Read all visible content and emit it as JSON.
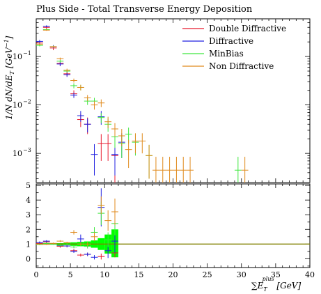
{
  "chart_data": {
    "type": "scatter",
    "title": "Plus Side - Total Transverse Energy Deposition",
    "ylabel": "1/N dN/dE_T [GeV^-1]",
    "xlabel": "ΣE_T^plus [GeV]",
    "xlim": [
      0,
      40
    ],
    "main_yscale": "log",
    "main_ylim": [
      0.00025,
      0.6
    ],
    "ratio_ylim": [
      -0.6,
      5.1
    ],
    "x_ticks": [
      0,
      5,
      10,
      15,
      20,
      25,
      30,
      35,
      40
    ],
    "y_ticks_main": [
      "10^-3",
      "10^-2",
      "10^-1"
    ],
    "y_ticks_ratio": [
      0,
      1,
      2,
      3,
      4,
      5
    ],
    "legend_position": "top-right",
    "colors": {
      "Double Diffractive": "#e8192c",
      "Diffractive": "#1f1fe0",
      "MinBias": "#3ee83e",
      "Non Diffractive": "#e08a1c",
      "band": "#00ff00",
      "unity_line": "#808000"
    },
    "series": [
      {
        "name": "Double Diffractive",
        "points": [
          {
            "x": 0.5,
            "y": 0.19,
            "ey": 0.02
          },
          {
            "x": 1.5,
            "y": 0.4,
            "ey": 0.03
          },
          {
            "x": 2.5,
            "y": 0.15,
            "ey": 0.015
          },
          {
            "x": 3.5,
            "y": 0.072,
            "ey": 0.008
          },
          {
            "x": 4.5,
            "y": 0.044,
            "ey": 0.005
          },
          {
            "x": 5.5,
            "y": 0.017,
            "ey": 0.003
          },
          {
            "x": 6.5,
            "y": 0.005,
            "ey": 0.0015
          },
          {
            "x": 7.5,
            "y": 0.004,
            "ey": 0.0015
          },
          {
            "x": 9.5,
            "y": 0.0016,
            "ey": 0.0009
          },
          {
            "x": 10.5,
            "y": 0.0016,
            "ey": 0.0009
          },
          {
            "x": 11.5,
            "y": 0.0009,
            "ey": 0.0007
          }
        ]
      },
      {
        "name": "Diffractive",
        "points": [
          {
            "x": 0.5,
            "y": 0.205,
            "ey": 0.015
          },
          {
            "x": 1.5,
            "y": 0.42,
            "ey": 0.02
          },
          {
            "x": 2.5,
            "y": 0.16,
            "ey": 0.012
          },
          {
            "x": 3.5,
            "y": 0.07,
            "ey": 0.007
          },
          {
            "x": 4.5,
            "y": 0.042,
            "ey": 0.004
          },
          {
            "x": 5.5,
            "y": 0.016,
            "ey": 0.002
          },
          {
            "x": 6.5,
            "y": 0.006,
            "ey": 0.0015
          },
          {
            "x": 7.5,
            "y": 0.004,
            "ey": 0.0013
          },
          {
            "x": 8.5,
            "y": 0.00095,
            "ey": 0.0006
          },
          {
            "x": 9.5,
            "y": 0.0057,
            "ey": 0.0018
          },
          {
            "x": 11.5,
            "y": 0.00095,
            "ey": 0.0006
          },
          {
            "x": 12.5,
            "y": 0.0017,
            "ey": 0.0009
          }
        ]
      },
      {
        "name": "MinBias",
        "points": [
          {
            "x": 0.5,
            "y": 0.17,
            "ey": 0.008
          },
          {
            "x": 1.5,
            "y": 0.36,
            "ey": 0.012
          },
          {
            "x": 2.5,
            "y": 0.16,
            "ey": 0.008
          },
          {
            "x": 3.5,
            "y": 0.08,
            "ey": 0.005
          },
          {
            "x": 4.5,
            "y": 0.05,
            "ey": 0.004
          },
          {
            "x": 5.5,
            "y": 0.025,
            "ey": 0.003
          },
          {
            "x": 6.5,
            "y": 0.023,
            "ey": 0.003
          },
          {
            "x": 7.5,
            "y": 0.012,
            "ey": 0.002
          },
          {
            "x": 8.5,
            "y": 0.012,
            "ey": 0.002
          },
          {
            "x": 9.5,
            "y": 0.0055,
            "ey": 0.0013
          },
          {
            "x": 10.5,
            "y": 0.004,
            "ey": 0.0012
          },
          {
            "x": 11.5,
            "y": 0.0022,
            "ey": 0.0009
          },
          {
            "x": 12.5,
            "y": 0.0016,
            "ey": 0.0008
          },
          {
            "x": 13.5,
            "y": 0.0025,
            "ey": 0.0009
          },
          {
            "x": 14.5,
            "y": 0.0017,
            "ey": 0.0008
          },
          {
            "x": 16.5,
            "y": 0.0009,
            "ey": 0.0006
          },
          {
            "x": 29.5,
            "y": 0.00045,
            "ey": 0.0004
          }
        ]
      },
      {
        "name": "Non Diffractive",
        "points": [
          {
            "x": 0.5,
            "y": 0.18,
            "ey": 0.006
          },
          {
            "x": 1.5,
            "y": 0.35,
            "ey": 0.01
          },
          {
            "x": 2.5,
            "y": 0.16,
            "ey": 0.006
          },
          {
            "x": 3.5,
            "y": 0.09,
            "ey": 0.005
          },
          {
            "x": 4.5,
            "y": 0.052,
            "ey": 0.004
          },
          {
            "x": 5.5,
            "y": 0.032,
            "ey": 0.003
          },
          {
            "x": 6.5,
            "y": 0.023,
            "ey": 0.003
          },
          {
            "x": 7.5,
            "y": 0.014,
            "ey": 0.002
          },
          {
            "x": 8.5,
            "y": 0.01,
            "ey": 0.002
          },
          {
            "x": 9.5,
            "y": 0.011,
            "ey": 0.002
          },
          {
            "x": 10.5,
            "y": 0.0045,
            "ey": 0.0012
          },
          {
            "x": 11.5,
            "y": 0.0032,
            "ey": 0.001
          },
          {
            "x": 12.5,
            "y": 0.0023,
            "ey": 0.0009
          },
          {
            "x": 13.5,
            "y": 0.0012,
            "ey": 0.0007
          },
          {
            "x": 14.5,
            "y": 0.0018,
            "ey": 0.0008
          },
          {
            "x": 15.5,
            "y": 0.0018,
            "ey": 0.0008
          },
          {
            "x": 16.5,
            "y": 0.0009,
            "ey": 0.0006
          },
          {
            "x": 17.5,
            "y": 0.00045,
            "ey": 0.0004
          },
          {
            "x": 18.5,
            "y": 0.00045,
            "ey": 0.0004
          },
          {
            "x": 19.5,
            "y": 0.00045,
            "ey": 0.0004
          },
          {
            "x": 20.5,
            "y": 0.00045,
            "ey": 0.0004
          },
          {
            "x": 21.5,
            "y": 0.00045,
            "ey": 0.0004
          },
          {
            "x": 22.5,
            "y": 0.00045,
            "ey": 0.0004
          },
          {
            "x": 30.5,
            "y": 0.00045,
            "ey": 0.0004
          }
        ]
      }
    ],
    "ratio": {
      "band": [
        {
          "x0": 0,
          "x1": 1,
          "lo": 0.96,
          "hi": 1.04
        },
        {
          "x0": 1,
          "x1": 2,
          "lo": 0.97,
          "hi": 1.03
        },
        {
          "x0": 2,
          "x1": 3,
          "lo": 0.96,
          "hi": 1.04
        },
        {
          "x0": 3,
          "x1": 4,
          "lo": 0.94,
          "hi": 1.06
        },
        {
          "x0": 4,
          "x1": 5,
          "lo": 0.92,
          "hi": 1.08
        },
        {
          "x0": 5,
          "x1": 6,
          "lo": 0.88,
          "hi": 1.12
        },
        {
          "x0": 6,
          "x1": 7,
          "lo": 0.85,
          "hi": 1.15
        },
        {
          "x0": 7,
          "x1": 8,
          "lo": 0.82,
          "hi": 1.18
        },
        {
          "x0": 8,
          "x1": 9,
          "lo": 0.75,
          "hi": 1.25
        },
        {
          "x0": 9,
          "x1": 10,
          "lo": 0.6,
          "hi": 1.4
        },
        {
          "x0": 10,
          "x1": 11,
          "lo": 0.35,
          "hi": 1.65
        },
        {
          "x0": 11,
          "x1": 12,
          "lo": 0.1,
          "hi": 2.0
        }
      ],
      "series": [
        {
          "name": "Double Diffractive",
          "points": [
            {
              "x": 0.5,
              "y": 1.05,
              "ey": 0.1
            },
            {
              "x": 1.5,
              "y": 1.15,
              "ey": 0.08
            },
            {
              "x": 3.5,
              "y": 0.85,
              "ey": 0.1
            },
            {
              "x": 4.5,
              "y": 0.87,
              "ey": 0.1
            },
            {
              "x": 5.5,
              "y": 0.55,
              "ey": 0.12
            },
            {
              "x": 6.5,
              "y": 0.25,
              "ey": 0.1
            },
            {
              "x": 7.5,
              "y": 0.3,
              "ey": 0.12
            },
            {
              "x": 9.5,
              "y": 0.15,
              "ey": 0.2
            },
            {
              "x": 11.5,
              "y": 0.4,
              "ey": 0.3
            }
          ]
        },
        {
          "name": "Diffractive",
          "points": [
            {
              "x": 0.5,
              "y": 1.1,
              "ey": 0.08
            },
            {
              "x": 1.5,
              "y": 1.2,
              "ey": 0.06
            },
            {
              "x": 3.5,
              "y": 0.9,
              "ey": 0.08
            },
            {
              "x": 4.5,
              "y": 0.87,
              "ey": 0.08
            },
            {
              "x": 5.5,
              "y": 0.5,
              "ey": 0.1
            },
            {
              "x": 6.5,
              "y": 1.35,
              "ey": 0.3
            },
            {
              "x": 7.5,
              "y": 0.3,
              "ey": 0.12
            },
            {
              "x": 8.5,
              "y": 0.1,
              "ey": 0.15
            },
            {
              "x": 9.5,
              "y": 3.5,
              "ey": 1.3
            },
            {
              "x": 10.5,
              "y": 0.55,
              "ey": 0.5
            },
            {
              "x": 11.5,
              "y": 1.2,
              "ey": 0.8
            }
          ]
        },
        {
          "name": "MinBias",
          "points": [
            {
              "x": 0.5,
              "y": 0.97,
              "ey": 0.05
            },
            {
              "x": 1.5,
              "y": 1.05,
              "ey": 0.04
            },
            {
              "x": 2.5,
              "y": 1.0,
              "ey": 0.05
            },
            {
              "x": 3.5,
              "y": 0.92,
              "ey": 0.06
            },
            {
              "x": 4.5,
              "y": 0.97,
              "ey": 0.07
            },
            {
              "x": 5.5,
              "y": 0.8,
              "ey": 0.08
            },
            {
              "x": 6.5,
              "y": 1.0,
              "ey": 0.12
            },
            {
              "x": 7.5,
              "y": 0.85,
              "ey": 0.15
            },
            {
              "x": 8.5,
              "y": 1.8,
              "ey": 0.35
            },
            {
              "x": 9.5,
              "y": 3.1,
              "ey": 0.8
            },
            {
              "x": 10.5,
              "y": 1.3,
              "ey": 0.5
            },
            {
              "x": 11.5,
              "y": 2.4,
              "ey": 0.8
            }
          ]
        },
        {
          "name": "Non Diffractive",
          "points": [
            {
              "x": 0.5,
              "y": 1.0,
              "ey": 0.04
            },
            {
              "x": 1.5,
              "y": 0.98,
              "ey": 0.04
            },
            {
              "x": 2.5,
              "y": 1.05,
              "ey": 0.05
            },
            {
              "x": 3.5,
              "y": 1.2,
              "ey": 0.06
            },
            {
              "x": 4.5,
              "y": 1.1,
              "ey": 0.06
            },
            {
              "x": 5.5,
              "y": 1.8,
              "ey": 0.15
            },
            {
              "x": 6.5,
              "y": 1.0,
              "ey": 0.12
            },
            {
              "x": 7.5,
              "y": 1.0,
              "ey": 0.15
            },
            {
              "x": 8.5,
              "y": 1.5,
              "ey": 0.3
            },
            {
              "x": 9.5,
              "y": 3.65,
              "ey": 0.6
            },
            {
              "x": 10.5,
              "y": 2.6,
              "ey": 0.7
            },
            {
              "x": 11.5,
              "y": 3.2,
              "ey": 0.9
            }
          ]
        }
      ]
    }
  }
}
